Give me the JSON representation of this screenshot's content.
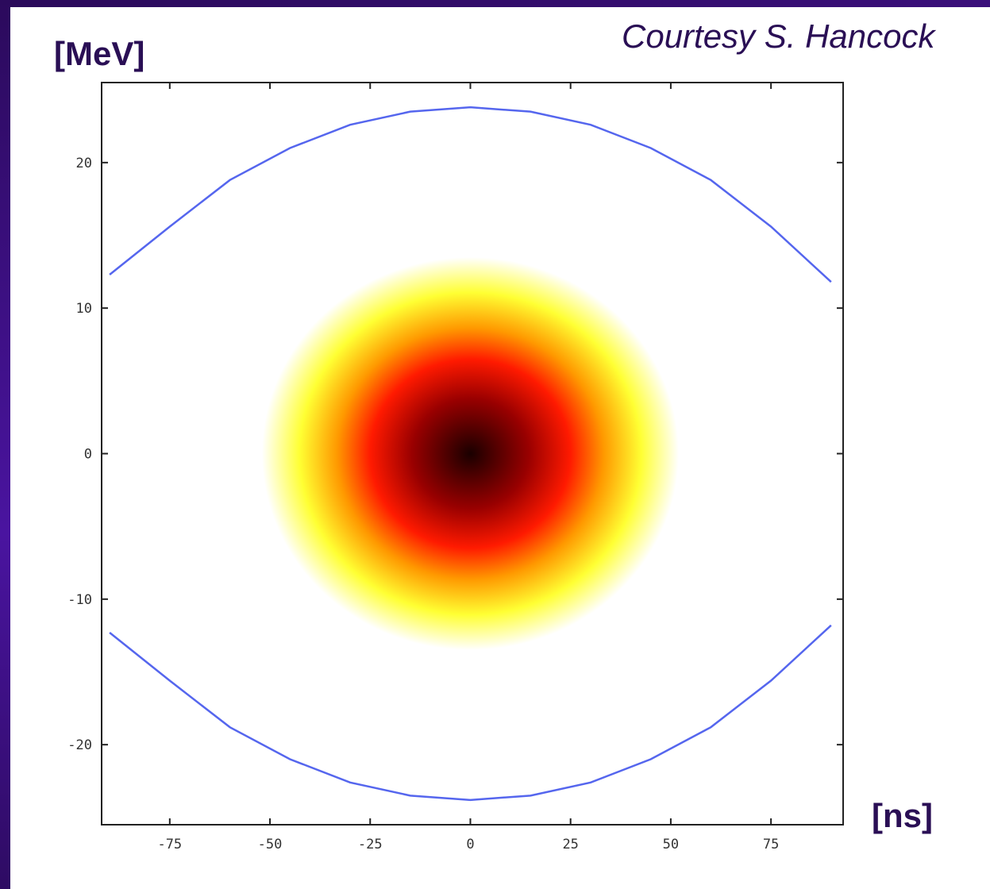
{
  "labels": {
    "y_unit": "[MeV]",
    "x_unit": "[ns]",
    "credit": "Courtesy S. Hancock"
  },
  "chart_data": {
    "type": "heatmap",
    "xlabel": "[ns]",
    "ylabel": "[MeV]",
    "xlim": [
      -92,
      93
    ],
    "ylim": [
      -25.5,
      25.5
    ],
    "x_ticks": [
      {
        "value": -75,
        "label": "-75"
      },
      {
        "value": -50,
        "label": "-50"
      },
      {
        "value": -25,
        "label": "-25"
      },
      {
        "value": 0,
        "label": "0"
      },
      {
        "value": 25,
        "label": "25"
      },
      {
        "value": 50,
        "label": "50"
      },
      {
        "value": 75,
        "label": "75"
      }
    ],
    "y_ticks": [
      {
        "value": 20,
        "label": "20"
      },
      {
        "value": 10,
        "label": "10"
      },
      {
        "value": 0,
        "label": "0"
      },
      {
        "value": -10,
        "label": "-10"
      },
      {
        "value": -20,
        "label": "-20"
      }
    ],
    "density_center": {
      "x": 0,
      "y": 0
    },
    "density_extent": {
      "x_radius": 52,
      "y_radius": 13.5
    },
    "density_colors": [
      "#ffffff",
      "#ffff33",
      "#ff9900",
      "#ff1a00",
      "#990000",
      "#1a0000"
    ],
    "separatrix": {
      "color": "#5566ee",
      "x": [
        -90,
        -75,
        -60,
        -45,
        -30,
        -15,
        0,
        15,
        30,
        45,
        60,
        75,
        90
      ],
      "upper": [
        12.3,
        15.6,
        18.8,
        21.0,
        22.6,
        23.5,
        23.8,
        23.5,
        22.6,
        21.0,
        18.8,
        15.6,
        11.8
      ],
      "lower": [
        -12.3,
        -15.6,
        -18.8,
        -21.0,
        -22.6,
        -23.5,
        -23.8,
        -23.5,
        -22.6,
        -21.0,
        -18.8,
        -15.6,
        -11.8
      ]
    }
  }
}
